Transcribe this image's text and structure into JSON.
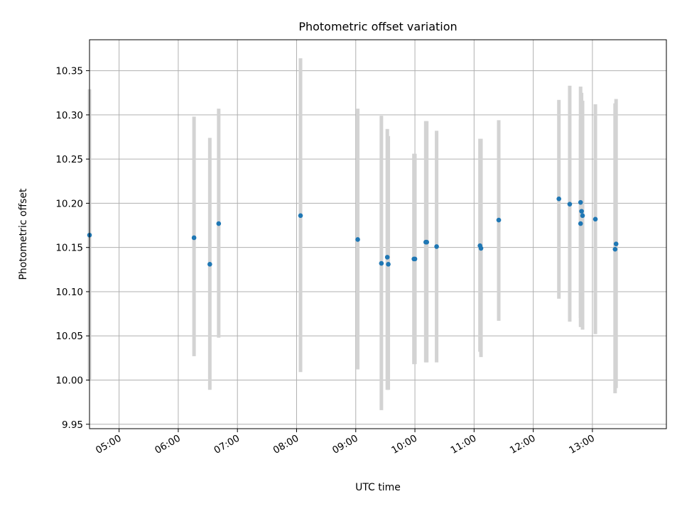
{
  "chart_data": {
    "type": "scatter",
    "title": "Photometric offset variation",
    "xlabel": "UTC time",
    "ylabel": "Photometric offset",
    "x_ticks": [
      "05:00",
      "06:00",
      "07:00",
      "08:00",
      "09:00",
      "10:00",
      "11:00",
      "12:00",
      "13:00"
    ],
    "y_ticks": [
      "9.95",
      "10.00",
      "10.05",
      "10.10",
      "10.15",
      "10.20",
      "10.25",
      "10.30",
      "10.35"
    ],
    "xlim": [
      "04:30",
      "14:15"
    ],
    "ylim": [
      9.945,
      10.385
    ],
    "grid": true,
    "colors": {
      "points": "#1f77b4",
      "errorbars": "#d3d3d3",
      "grid": "#b0b0b0"
    },
    "points": [
      {
        "x": "04:30",
        "y": 10.164,
        "ylo": 9.999,
        "yhi": 10.329
      },
      {
        "x": "06:16",
        "y": 10.161,
        "ylo": 10.027,
        "yhi": 10.298
      },
      {
        "x": "06:32",
        "y": 10.131,
        "ylo": 9.989,
        "yhi": 10.274
      },
      {
        "x": "06:41",
        "y": 10.177,
        "ylo": 10.048,
        "yhi": 10.307
      },
      {
        "x": "08:04",
        "y": 10.186,
        "ylo": 10.009,
        "yhi": 10.364
      },
      {
        "x": "09:02",
        "y": 10.159,
        "ylo": 10.012,
        "yhi": 10.307
      },
      {
        "x": "09:26",
        "y": 10.132,
        "ylo": 9.966,
        "yhi": 10.299
      },
      {
        "x": "09:32",
        "y": 10.139,
        "ylo": 9.989,
        "yhi": 10.284
      },
      {
        "x": "09:33",
        "y": 10.131,
        "ylo": 9.989,
        "yhi": 10.276
      },
      {
        "x": "09:59",
        "y": 10.137,
        "ylo": 10.018,
        "yhi": 10.256
      },
      {
        "x": "10:00",
        "y": 10.137,
        "ylo": 10.018,
        "yhi": 10.256
      },
      {
        "x": "10:11",
        "y": 10.156,
        "ylo": 10.02,
        "yhi": 10.293
      },
      {
        "x": "10:12",
        "y": 10.156,
        "ylo": 10.02,
        "yhi": 10.293
      },
      {
        "x": "10:22",
        "y": 10.151,
        "ylo": 10.02,
        "yhi": 10.282
      },
      {
        "x": "11:06",
        "y": 10.152,
        "ylo": 10.032,
        "yhi": 10.273
      },
      {
        "x": "11:07",
        "y": 10.149,
        "ylo": 10.026,
        "yhi": 10.273
      },
      {
        "x": "11:25",
        "y": 10.181,
        "ylo": 10.067,
        "yhi": 10.294
      },
      {
        "x": "12:26",
        "y": 10.205,
        "ylo": 10.092,
        "yhi": 10.317
      },
      {
        "x": "12:37",
        "y": 10.199,
        "ylo": 10.066,
        "yhi": 10.333
      },
      {
        "x": "12:48",
        "y": 10.201,
        "ylo": 10.07,
        "yhi": 10.332
      },
      {
        "x": "12:48",
        "y": 10.177,
        "ylo": 10.06,
        "yhi": 10.295
      },
      {
        "x": "12:49",
        "y": 10.191,
        "ylo": 10.06,
        "yhi": 10.325
      },
      {
        "x": "12:50",
        "y": 10.186,
        "ylo": 10.057,
        "yhi": 10.316
      },
      {
        "x": "13:03",
        "y": 10.182,
        "ylo": 10.052,
        "yhi": 10.312
      },
      {
        "x": "13:23",
        "y": 10.148,
        "ylo": 9.985,
        "yhi": 10.313
      },
      {
        "x": "13:24",
        "y": 10.154,
        "ylo": 9.991,
        "yhi": 10.318
      }
    ]
  }
}
